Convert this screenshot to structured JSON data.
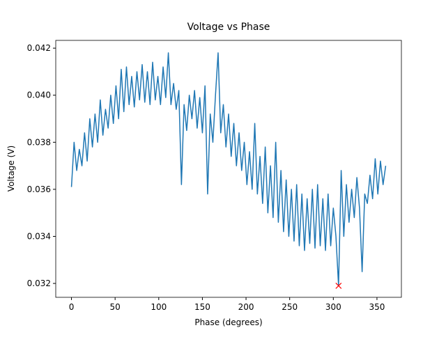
{
  "chart_data": {
    "type": "line",
    "title": "Voltage vs Phase",
    "x_label": "Phase (degrees)",
    "y_label": "Voltage (V)",
    "x": [
      0,
      3,
      6,
      9,
      12,
      15,
      18,
      21,
      24,
      27,
      30,
      33,
      36,
      39,
      42,
      45,
      48,
      51,
      54,
      57,
      60,
      63,
      66,
      69,
      72,
      75,
      78,
      81,
      84,
      87,
      90,
      93,
      96,
      99,
      102,
      105,
      108,
      111,
      114,
      117,
      120,
      123,
      126,
      129,
      132,
      135,
      138,
      141,
      144,
      147,
      150,
      153,
      156,
      159,
      162,
      165,
      168,
      171,
      174,
      177,
      180,
      183,
      186,
      189,
      192,
      195,
      198,
      201,
      204,
      207,
      210,
      213,
      216,
      219,
      222,
      225,
      228,
      231,
      234,
      237,
      240,
      243,
      246,
      249,
      252,
      255,
      258,
      261,
      264,
      267,
      270,
      273,
      276,
      279,
      282,
      285,
      288,
      291,
      294,
      297,
      300,
      303,
      306,
      309,
      312,
      315,
      318,
      321,
      324,
      327,
      330,
      333,
      336,
      339,
      342,
      345,
      348,
      351,
      354,
      357,
      360
    ],
    "series": [
      {
        "color": "#1f77b4",
        "style": "line",
        "values": [
          0.0361,
          0.038,
          0.0368,
          0.0377,
          0.037,
          0.0384,
          0.0372,
          0.039,
          0.0378,
          0.0392,
          0.038,
          0.0398,
          0.0383,
          0.0394,
          0.0386,
          0.04,
          0.0388,
          0.0404,
          0.039,
          0.0411,
          0.0393,
          0.0412,
          0.0396,
          0.0408,
          0.0395,
          0.041,
          0.0398,
          0.0413,
          0.0397,
          0.041,
          0.0396,
          0.0414,
          0.0398,
          0.0408,
          0.0396,
          0.0412,
          0.0399,
          0.0418,
          0.0396,
          0.0405,
          0.0394,
          0.0402,
          0.0362,
          0.0396,
          0.0385,
          0.04,
          0.039,
          0.0402,
          0.0386,
          0.0399,
          0.0384,
          0.0404,
          0.0358,
          0.0392,
          0.038,
          0.04,
          0.0418,
          0.0384,
          0.0396,
          0.0378,
          0.0392,
          0.0374,
          0.0388,
          0.037,
          0.0384,
          0.0368,
          0.038,
          0.0362,
          0.0376,
          0.036,
          0.0388,
          0.0358,
          0.0374,
          0.0354,
          0.0378,
          0.035,
          0.037,
          0.0348,
          0.038,
          0.0346,
          0.0368,
          0.0342,
          0.0364,
          0.034,
          0.036,
          0.0338,
          0.0362,
          0.0336,
          0.0358,
          0.0334,
          0.0356,
          0.0337,
          0.036,
          0.0335,
          0.0362,
          0.0336,
          0.0356,
          0.0334,
          0.0358,
          0.0336,
          0.0352,
          0.034,
          0.0319,
          0.0368,
          0.034,
          0.0362,
          0.0346,
          0.036,
          0.0348,
          0.0365,
          0.0352,
          0.0325,
          0.0358,
          0.0354,
          0.0366,
          0.0356,
          0.0373,
          0.0358,
          0.0372,
          0.0362,
          0.037
        ]
      },
      {
        "color": "red",
        "style": "marker",
        "x": [
          306
        ],
        "values": [
          0.0319
        ]
      }
    ],
    "xlim": [
      -18,
      378
    ],
    "ylim": [
      0.03141,
      0.04233
    ],
    "xticks": [
      0,
      50,
      100,
      150,
      200,
      250,
      300,
      350
    ],
    "yticks": [
      0.032,
      0.034,
      0.036,
      0.038,
      {
        "value": 0.04,
        "label": "0.040"
      },
      0.042
    ],
    "grid": false
  }
}
